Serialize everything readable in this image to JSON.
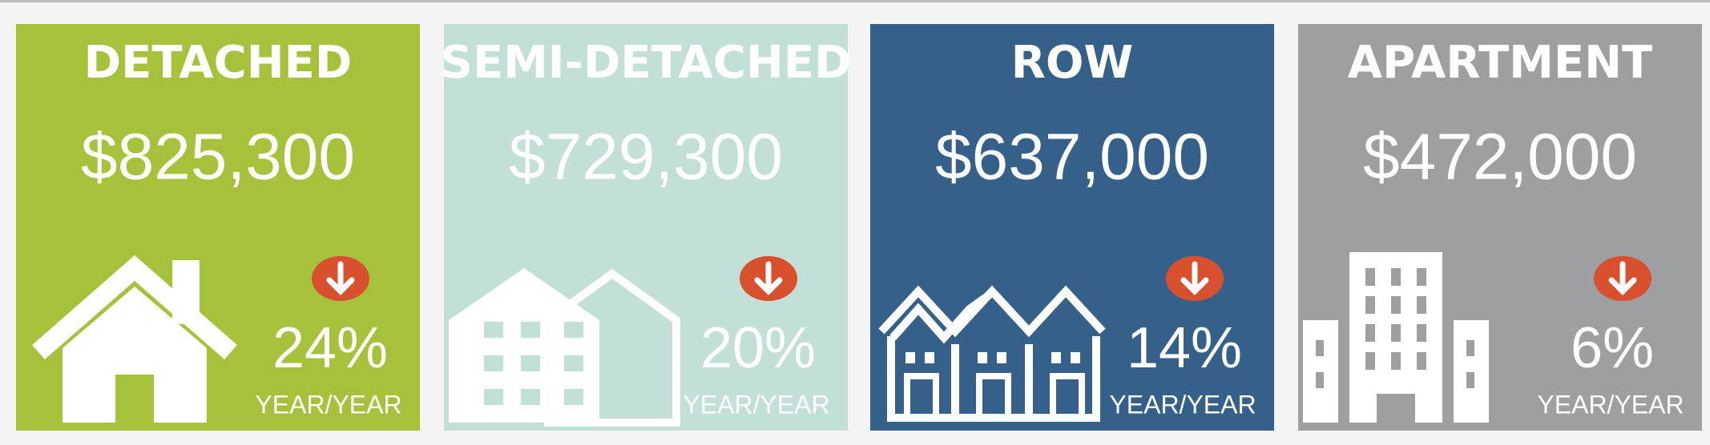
{
  "cards": [
    {
      "title": "DETACHED",
      "price": "$825,300",
      "change": "24%",
      "label": "YEAR/YEAR"
    },
    {
      "title": "SEMI-DETACHED",
      "price": "$729,300",
      "change": "20%",
      "label": "YEAR/YEAR"
    },
    {
      "title": "ROW",
      "price": "$637,000",
      "change": "14%",
      "label": "YEAR/YEAR"
    },
    {
      "title": "APARTMENT",
      "price": "$472,000",
      "change": "6%",
      "label": "YEAR/YEAR"
    }
  ]
}
